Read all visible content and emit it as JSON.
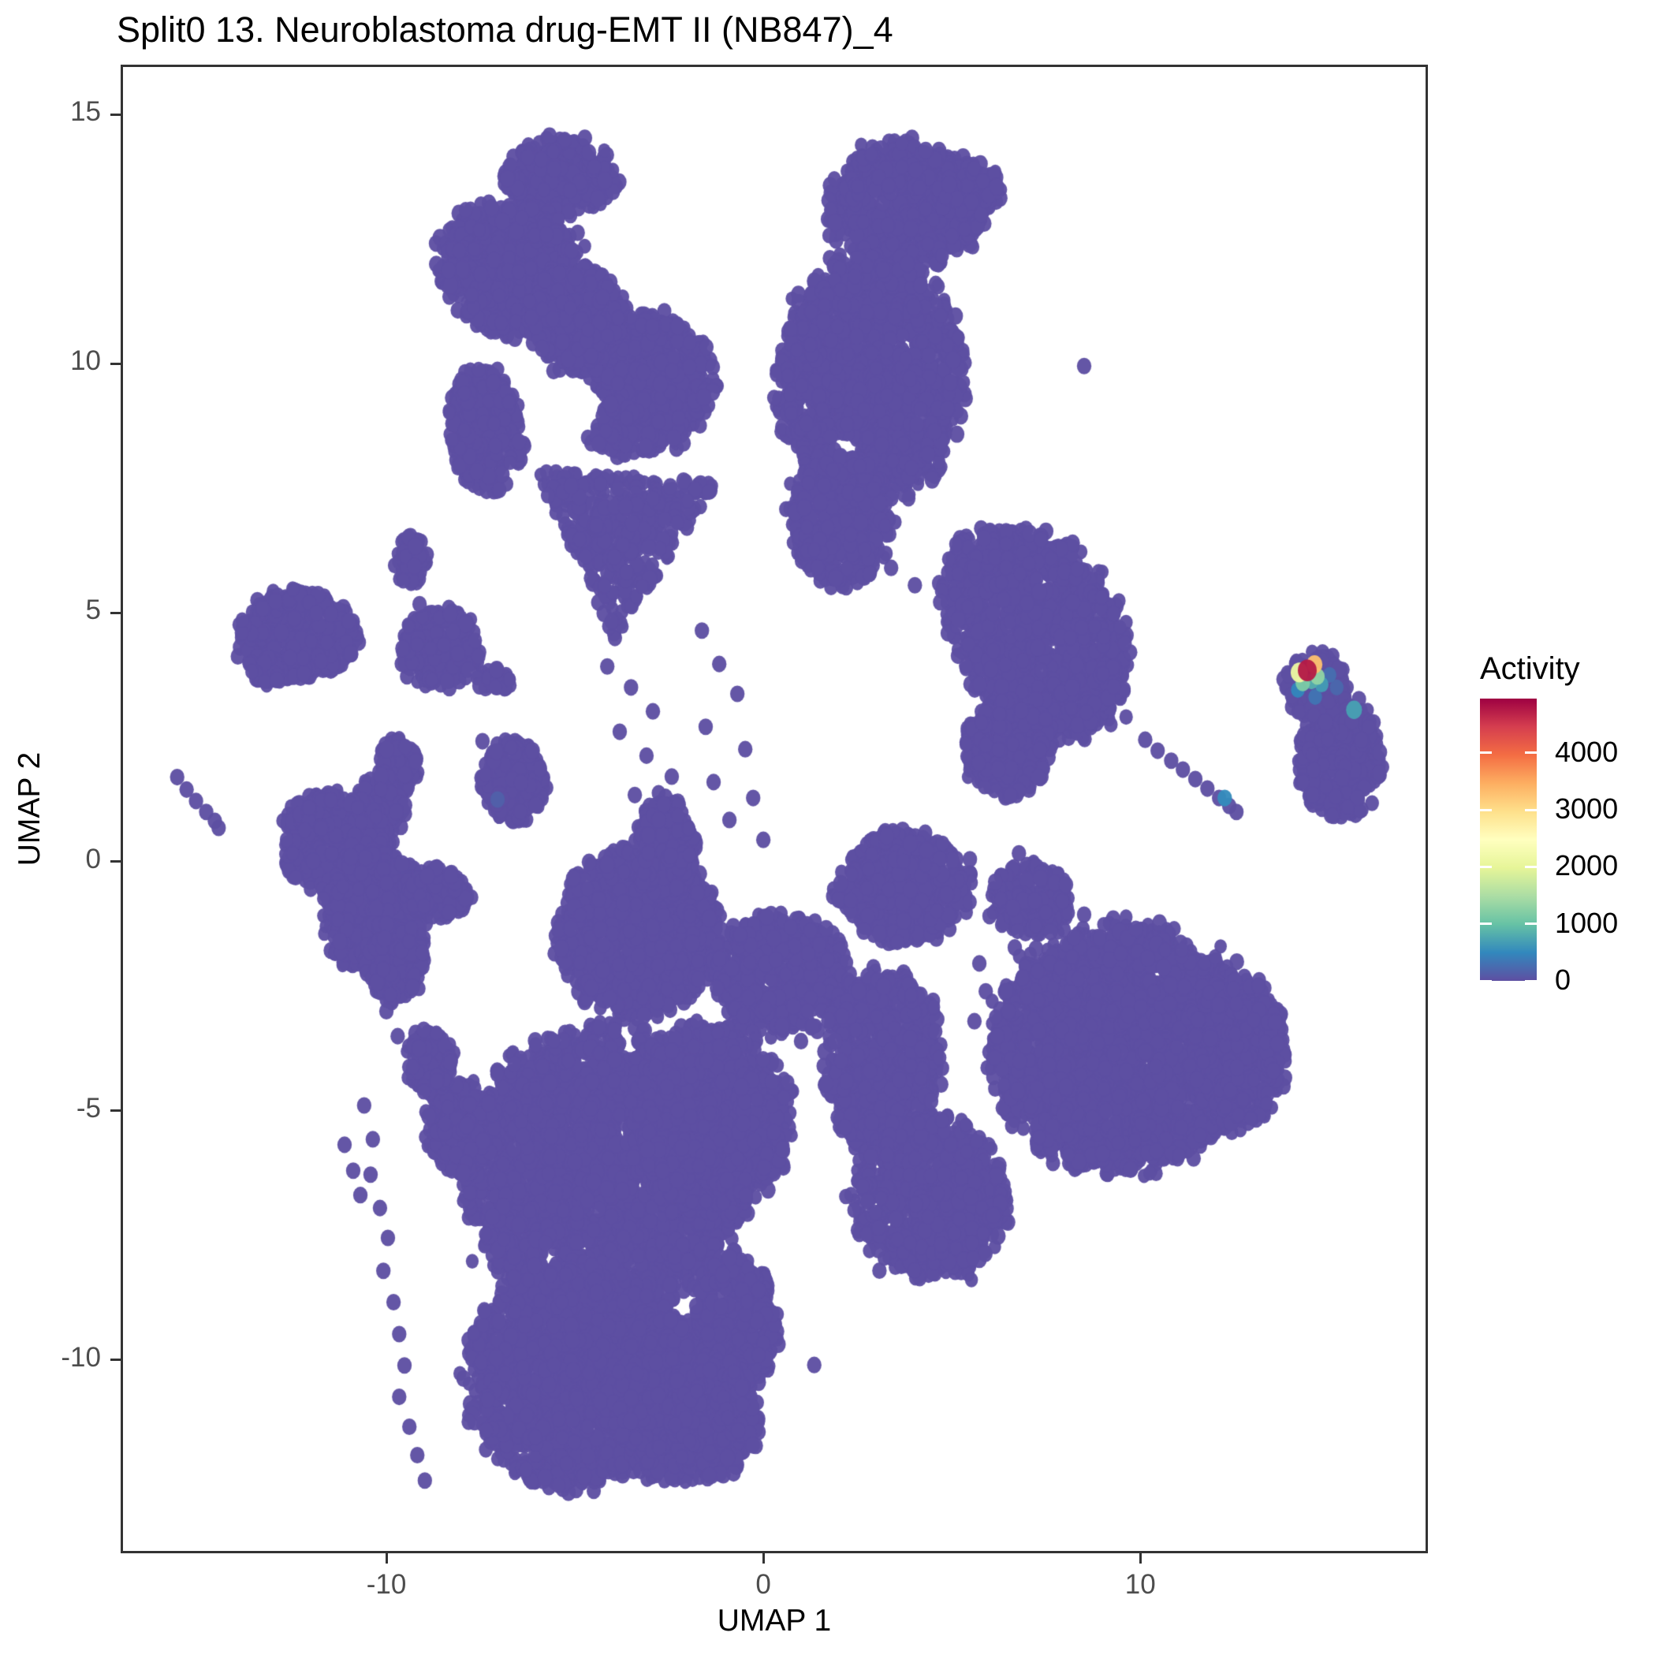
{
  "title": "Split0 13. Neuroblastoma drug-EMT II (NB847)_4",
  "axes": {
    "x": {
      "label": "UMAP 1",
      "ticks": [
        -10,
        0,
        10
      ]
    },
    "y": {
      "label": "UMAP 2",
      "ticks": [
        15,
        10,
        5,
        0,
        -5,
        -10
      ]
    }
  },
  "legend": {
    "title": "Activity",
    "ticks": [
      0,
      1000,
      2000,
      3000,
      4000
    ],
    "domain": [
      0,
      4950
    ],
    "colors": [
      "#5E4FA2",
      "#3288BD",
      "#66C2A5",
      "#ABDDA4",
      "#E6F598",
      "#FFFFBF",
      "#FEE08B",
      "#FDAE61",
      "#F46D43",
      "#D53E4F",
      "#9E0142"
    ]
  },
  "chart_data": {
    "type": "scatter",
    "title": "Split0 13. Neuroblastoma drug-EMT II (NB847)_4",
    "xlabel": "UMAP 1",
    "ylabel": "UMAP 2",
    "xlim": [
      -17.05,
      17.63
    ],
    "ylim": [
      -13.88,
      16.0
    ],
    "grid": false,
    "legend_position": "right",
    "point_color": "#5E4FA2",
    "point_alpha": 0.96,
    "point_radius_px": 9.5,
    "seed": 42,
    "blobs": [
      {
        "name": "topleft-upper-lobe",
        "cx": -5.4,
        "cy": 13.73,
        "rx": 1.46,
        "ry": 0.79,
        "n": 330
      },
      {
        "name": "topleft-left-lobe",
        "cx": -6.55,
        "cy": 11.84,
        "rx": 2.09,
        "ry": 1.27,
        "rot": -12,
        "n": 740
      },
      {
        "name": "topleft-left-arm",
        "cx": -7.38,
        "cy": 8.67,
        "rx": 0.94,
        "ry": 1.23,
        "rot": 10,
        "n": 330
      },
      {
        "name": "topleft-right-mass",
        "cx": -3.41,
        "cy": 9.62,
        "rx": 2.09,
        "ry": 1.42,
        "n": 840,
        "holes": [
          [
            -5.19,
            9.14,
            0.95
          ]
        ]
      },
      {
        "name": "topleft-center-fill",
        "cx": -4.98,
        "cy": 10.96,
        "rx": 1.26,
        "ry": 0.95,
        "n": 340
      },
      {
        "name": "topleft-bottom-triangle",
        "tri": [
          [
            -6.03,
            7.85
          ],
          [
            -1.21,
            7.62
          ],
          [
            -3.93,
            4.42
          ]
        ],
        "n": 430
      },
      {
        "name": "topright-head",
        "cx": 3.81,
        "cy": 13.18,
        "rx": 2.09,
        "ry": 1.23,
        "n": 730
      },
      {
        "name": "topright-ear",
        "cx": 5.44,
        "cy": 13.5,
        "rx": 0.84,
        "ry": 0.55,
        "n": 130
      },
      {
        "name": "topright-body",
        "cx": 2.87,
        "cy": 9.7,
        "rx": 2.41,
        "ry": 2.45,
        "n": 1650,
        "holes": [
          [
            2.2,
            8.3,
            0.38
          ]
        ]
      },
      {
        "name": "topright-neck",
        "cx": 2.03,
        "cy": 6.93,
        "rx": 1.36,
        "ry": 1.34,
        "n": 510
      },
      {
        "name": "topright-lower-lobe",
        "cx": 7.26,
        "cy": 4.64,
        "rx": 2.61,
        "ry": 1.82,
        "rot": -32,
        "n": 1330
      },
      {
        "name": "topright-lobe-tip",
        "cx": 6.53,
        "cy": 2.26,
        "rx": 1.15,
        "ry": 0.95,
        "n": 310
      },
      {
        "name": "left-blob",
        "cx": -12.35,
        "cy": 4.55,
        "rx": 1.55,
        "ry": 0.88,
        "n": 400
      },
      {
        "name": "left-blob-tail",
        "cx": -13.2,
        "cy": 3.85,
        "rx": 0.45,
        "ry": 0.3,
        "rot": -35,
        "n": 32
      },
      {
        "name": "left-small-1",
        "cx": -8.55,
        "cy": 4.3,
        "rx": 1.05,
        "ry": 0.78,
        "n": 230
      },
      {
        "name": "left-small-pair",
        "cx": -7.1,
        "cy": 3.65,
        "rx": 0.5,
        "ry": 0.24,
        "n": 30
      },
      {
        "name": "left-small-2",
        "cx": -9.35,
        "cy": 6.04,
        "rx": 0.42,
        "ry": 0.51,
        "n": 60
      },
      {
        "name": "left-small-3",
        "cx": -6.6,
        "cy": 1.6,
        "rx": 0.85,
        "ry": 0.8,
        "n": 200
      },
      {
        "name": "midleft-knob",
        "cx": -9.7,
        "cy": 1.9,
        "rx": 0.55,
        "ry": 0.55,
        "n": 80
      },
      {
        "name": "midleft-bridge",
        "cx": -10.2,
        "cy": 1.0,
        "rx": 0.65,
        "ry": 0.7,
        "n": 160
      },
      {
        "name": "midleft-1",
        "cx": -11.3,
        "cy": 0.3,
        "rx": 1.5,
        "ry": 1.05,
        "rot": -15,
        "n": 500
      },
      {
        "name": "midleft-2",
        "cx": -10.3,
        "cy": -1.0,
        "rx": 1.4,
        "ry": 1.2,
        "n": 520
      },
      {
        "name": "midleft-right-arm",
        "cx": -8.6,
        "cy": -0.6,
        "rx": 0.85,
        "ry": 0.5,
        "rot": -10,
        "n": 150
      },
      {
        "name": "midleft-bottom",
        "cx": -9.8,
        "cy": -2.0,
        "rx": 0.8,
        "ry": 0.8,
        "n": 210
      },
      {
        "name": "central-dome",
        "cx": -3.3,
        "cy": -1.4,
        "rx": 2.1,
        "ry": 1.65,
        "n": 1150
      },
      {
        "name": "central-peak",
        "cx": -2.6,
        "cy": 0.3,
        "rx": 0.8,
        "ry": 1.0,
        "n": 260
      },
      {
        "name": "central-right-bulge",
        "cx": 0.46,
        "cy": -2.25,
        "rx": 1.78,
        "ry": 1.19,
        "n": 590
      },
      {
        "name": "central-main",
        "cx": -4.14,
        "cy": -6.2,
        "rx": 3.66,
        "ry": 2.8,
        "n": 2870,
        "holes": [
          [
            -3.55,
            -3.75,
            0.28
          ],
          [
            -5.61,
            -8.02,
            0.3
          ]
        ]
      },
      {
        "name": "central-fill",
        "cx": -1.42,
        "cy": -5.17,
        "rx": 2.09,
        "ry": 1.9,
        "n": 1110,
        "holes": [
          [
            -1.7,
            -4.7,
            0.33
          ]
        ]
      },
      {
        "name": "central-lower",
        "cx": -5.0,
        "cy": -10.3,
        "rx": 2.8,
        "ry": 2.2,
        "n": 1730,
        "holes": [
          [
            -3.1,
            -8.02,
            0.28
          ]
        ]
      },
      {
        "name": "central-bottom-bump",
        "cx": -2.5,
        "cy": -10.8,
        "rx": 1.6,
        "ry": 1.6,
        "n": 710
      },
      {
        "name": "central-right-arm",
        "cx": -0.69,
        "cy": -9.21,
        "rx": 1.05,
        "ry": 1.34,
        "rot": 15,
        "n": 395
      },
      {
        "name": "central-right-arm-low",
        "cx": -1.32,
        "cy": -11.19,
        "rx": 1.15,
        "ry": 1.19,
        "n": 385
      },
      {
        "name": "central-left-spur",
        "cx": -8.01,
        "cy": -5.33,
        "rx": 0.94,
        "ry": 0.95,
        "n": 250
      },
      {
        "name": "central-left-spur2",
        "cx": -8.85,
        "cy": -3.99,
        "rx": 0.63,
        "ry": 0.63,
        "n": 115
      },
      {
        "name": "midright-1",
        "cx": 3.7,
        "cy": -0.51,
        "rx": 1.72,
        "ry": 1.11,
        "n": 535
      },
      {
        "name": "midright-2",
        "cx": 3.14,
        "cy": -3.99,
        "rx": 1.51,
        "ry": 1.82,
        "n": 770
      },
      {
        "name": "midright-3",
        "cx": 4.43,
        "cy": -6.76,
        "rx": 1.99,
        "ry": 1.58,
        "n": 880
      },
      {
        "name": "bottomright-main",
        "cx": 9.46,
        "cy": -3.75,
        "rx": 3.35,
        "ry": 2.45,
        "n": 2300
      },
      {
        "name": "bottomright-east",
        "cx": 12.59,
        "cy": -3.83,
        "rx": 1.21,
        "ry": 1.5,
        "n": 515
      },
      {
        "name": "bottomright-northwest",
        "cx": 7.15,
        "cy": -0.74,
        "rx": 1.05,
        "ry": 0.71,
        "n": 210
      },
      {
        "name": "right-active-top",
        "cx": 14.64,
        "cy": 3.53,
        "rx": 0.84,
        "ry": 0.66,
        "n": 160
      },
      {
        "name": "right-active-body",
        "cx": 15.31,
        "cy": 2.1,
        "rx": 1.15,
        "ry": 1.19,
        "n": 390
      }
    ],
    "dots": [
      [
        -1.34,
        9.93
      ],
      [
        8.51,
        9.95
      ],
      [
        -9.12,
        5.17
      ],
      [
        -7.45,
        2.42
      ],
      [
        -4.14,
        3.92
      ],
      [
        -3.51,
        3.5
      ],
      [
        -2.93,
        3.02
      ],
      [
        -3.81,
        2.61
      ],
      [
        -3.1,
        2.13
      ],
      [
        -2.43,
        1.71
      ],
      [
        -3.41,
        1.34
      ],
      [
        -2.78,
        0.84
      ],
      [
        -1.63,
        4.64
      ],
      [
        -1.17,
        3.97
      ],
      [
        -0.69,
        3.37
      ],
      [
        -1.53,
        2.71
      ],
      [
        -0.48,
        2.26
      ],
      [
        -1.32,
        1.6
      ],
      [
        -0.27,
        1.28
      ],
      [
        -0.9,
        0.84
      ],
      [
        0.0,
        0.44
      ],
      [
        3.39,
        5.9
      ],
      [
        4.02,
        5.55
      ],
      [
        4.69,
        5.21
      ],
      [
        5.17,
        4.86
      ],
      [
        5.48,
        0.05
      ],
      [
        6.15,
        -0.4
      ],
      [
        6.78,
        0.17
      ],
      [
        6.0,
        -1.09
      ],
      [
        7.2,
        -0.78
      ],
      [
        6.67,
        -1.72
      ],
      [
        7.62,
        -1.41
      ],
      [
        8.03,
        -0.46
      ],
      [
        5.73,
        -2.04
      ],
      [
        8.51,
        -1.06
      ],
      [
        5.9,
        -2.6
      ],
      [
        6.5,
        -3.0
      ],
      [
        7.0,
        -2.7
      ],
      [
        6.2,
        -3.5
      ],
      [
        6.8,
        -4.0
      ],
      [
        7.3,
        -3.4
      ],
      [
        5.6,
        -3.2
      ],
      [
        7.6,
        -4.4
      ],
      [
        7.1,
        -4.9
      ],
      [
        6.6,
        -5.3
      ],
      [
        0.8,
        -2.9
      ],
      [
        1.3,
        -3.3
      ],
      [
        1.9,
        -3.6
      ],
      [
        2.5,
        -3.9
      ],
      [
        1.0,
        -3.6
      ],
      [
        1.6,
        -4.1
      ],
      [
        2.2,
        -4.4
      ],
      [
        0.5,
        -3.3
      ],
      [
        1.35,
        -10.1
      ],
      [
        -10.0,
        -3.0
      ],
      [
        -9.7,
        -3.5
      ],
      [
        -11.11,
        -5.68
      ],
      [
        -10.88,
        -6.2
      ],
      [
        -10.69,
        -6.69
      ],
      [
        -10.59,
        -4.89
      ],
      [
        -10.36,
        -5.57
      ],
      [
        -10.42,
        -6.28
      ],
      [
        -10.17,
        -6.95
      ],
      [
        -9.96,
        -7.55
      ],
      [
        -10.08,
        -8.21
      ],
      [
        -9.81,
        -8.84
      ],
      [
        -9.66,
        -9.48
      ],
      [
        -9.52,
        -10.11
      ],
      [
        -9.66,
        -10.74
      ],
      [
        -9.39,
        -11.34
      ],
      [
        -9.18,
        -11.91
      ],
      [
        -8.98,
        -12.42
      ],
      [
        10.13,
        2.45
      ],
      [
        10.46,
        2.23
      ],
      [
        10.82,
        2.03
      ],
      [
        11.13,
        1.85
      ],
      [
        11.46,
        1.66
      ],
      [
        11.78,
        1.47
      ],
      [
        12.09,
        1.28
      ],
      [
        12.36,
        1.12
      ],
      [
        12.55,
        1.0
      ],
      [
        -15.55,
        1.7
      ],
      [
        -15.3,
        1.45
      ],
      [
        -15.05,
        1.22
      ],
      [
        -14.78,
        1.0
      ],
      [
        -14.55,
        0.82
      ],
      [
        -14.45,
        0.68
      ]
    ],
    "special_points": [
      {
        "x": -7.05,
        "y": 1.25,
        "value": 150,
        "r": 10
      },
      {
        "x": 15.21,
        "y": 3.5,
        "value": 210,
        "r": 9.5
      },
      {
        "x": 15.02,
        "y": 3.75,
        "value": 260,
        "r": 9.5
      },
      {
        "x": 14.64,
        "y": 3.31,
        "value": 320,
        "r": 9.5
      },
      {
        "x": 14.18,
        "y": 3.45,
        "value": 480,
        "r": 9.5
      },
      {
        "x": 12.24,
        "y": 1.28,
        "value": 520,
        "r": 10
      },
      {
        "x": 14.81,
        "y": 3.56,
        "value": 660,
        "r": 9.5
      },
      {
        "x": 15.67,
        "y": 3.05,
        "value": 700,
        "r": 11
      },
      {
        "x": 14.54,
        "y": 3.62,
        "value": 820,
        "r": 9.5
      },
      {
        "x": 14.31,
        "y": 3.59,
        "value": 1150,
        "r": 10
      },
      {
        "x": 14.7,
        "y": 3.72,
        "value": 1300,
        "r": 10
      },
      {
        "x": 14.22,
        "y": 3.8,
        "value": 2100,
        "r": 12
      },
      {
        "x": 14.62,
        "y": 3.96,
        "value": 3300,
        "r": 11
      },
      {
        "x": 14.43,
        "y": 3.84,
        "value": 4750,
        "r": 13
      }
    ]
  }
}
